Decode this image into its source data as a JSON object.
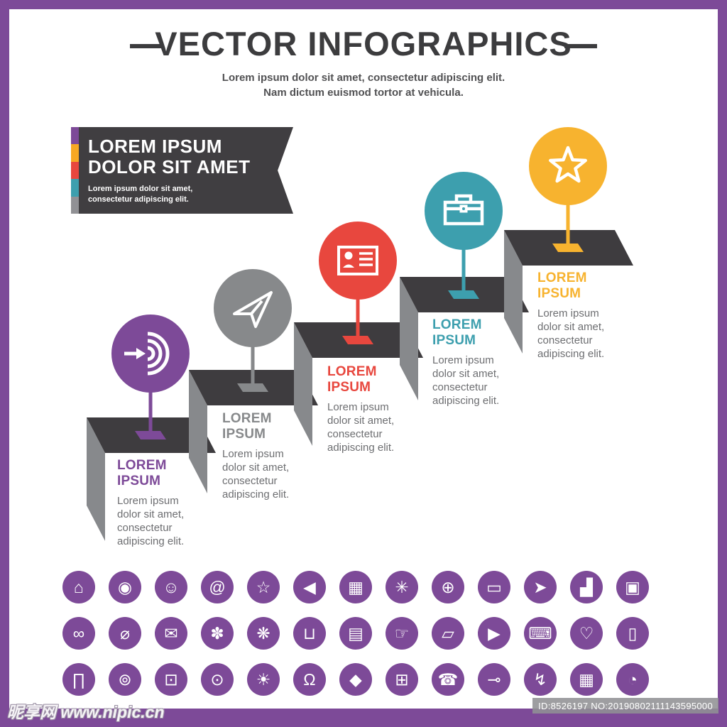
{
  "frame": {
    "border_color": "#7d4a98"
  },
  "header": {
    "title": "VECTOR INFOGRAPHICS",
    "subtitle_line1": "Lorem ipsum dolor sit amet, consectetur adipiscing elit.",
    "subtitle_line2": "Nam dictum euismod tortor at vehicula."
  },
  "banner": {
    "bg": "#403e41",
    "stripe_colors": [
      "#7d4a98",
      "#f7a823",
      "#e8473e",
      "#3d9fae",
      "#919195"
    ],
    "title_line1": "LOREM IPSUM",
    "title_line2": "DOLOR SIT AMET",
    "body_line1": "Lorem ipsum dolor sit amet,",
    "body_line2": "consectetur adipiscing elit."
  },
  "steps": [
    {
      "icon": "target-arrow-icon",
      "color": "#7d4a98",
      "heading": "LOREM IPSUM",
      "body": "Lorem ipsum dolor sit amet, consectetur adipiscing elit."
    },
    {
      "icon": "paper-plane-icon",
      "color": "#87898b",
      "heading": "LOREM IPSUM",
      "body": "Lorem ipsum dolor sit amet, consectetur adipiscing elit."
    },
    {
      "icon": "id-card-icon",
      "color": "#e8473e",
      "heading": "LOREM IPSUM",
      "body": "Lorem ipsum dolor sit amet, consectetur adipiscing elit."
    },
    {
      "icon": "briefcase-icon",
      "color": "#3d9fae",
      "heading": "LOREM IPSUM",
      "body": "Lorem ipsum dolor sit amet, consectetur adipiscing elit."
    },
    {
      "icon": "star-icon",
      "color": "#f7b32f",
      "heading": "LOREM IPSUM",
      "body": "Lorem ipsum dolor sit amet, consectetur adipiscing elit."
    }
  ],
  "icon_grid": {
    "color": "#7d4a98",
    "rows": [
      [
        {
          "name": "home-icon",
          "glyph": "⌂"
        },
        {
          "name": "location-pin-icon",
          "glyph": "◉"
        },
        {
          "name": "portrait-icon",
          "glyph": "☺"
        },
        {
          "name": "at-sign-icon",
          "glyph": "@"
        },
        {
          "name": "star-icon",
          "glyph": "☆"
        },
        {
          "name": "megaphone-icon",
          "glyph": "◀"
        },
        {
          "name": "gift-icon",
          "glyph": "▦"
        },
        {
          "name": "badge-icon",
          "glyph": "✳"
        },
        {
          "name": "globe-icon",
          "glyph": "⊕"
        },
        {
          "name": "laptop-icon",
          "glyph": "▭"
        },
        {
          "name": "send-icon",
          "glyph": "➤"
        },
        {
          "name": "bar-chart-icon",
          "glyph": "▟"
        },
        {
          "name": "wallet-icon",
          "glyph": "▣"
        }
      ],
      [
        {
          "name": "link-icon",
          "glyph": "∞"
        },
        {
          "name": "search-icon",
          "glyph": "⌀"
        },
        {
          "name": "chat-bubble-icon",
          "glyph": "✉"
        },
        {
          "name": "gear-icon",
          "glyph": "✽"
        },
        {
          "name": "network-globe-icon",
          "glyph": "❋"
        },
        {
          "name": "shopping-cart-icon",
          "glyph": "⊔"
        },
        {
          "name": "banknote-icon",
          "glyph": "▤"
        },
        {
          "name": "thumbs-up-icon",
          "glyph": "☞"
        },
        {
          "name": "truck-icon",
          "glyph": "▱"
        },
        {
          "name": "video-camera-icon",
          "glyph": "▶"
        },
        {
          "name": "printer-icon",
          "glyph": "⌨"
        },
        {
          "name": "heart-icon",
          "glyph": "♡"
        },
        {
          "name": "battery-icon",
          "glyph": "▯"
        }
      ],
      [
        {
          "name": "bank-icon",
          "glyph": "∏"
        },
        {
          "name": "piggy-bank-icon",
          "glyph": "⊚"
        },
        {
          "name": "monitor-icon",
          "glyph": "⊡"
        },
        {
          "name": "camera-icon",
          "glyph": "⊙"
        },
        {
          "name": "idea-icon",
          "glyph": "☀"
        },
        {
          "name": "headset-icon",
          "glyph": "Ω"
        },
        {
          "name": "shield-icon",
          "glyph": "◆"
        },
        {
          "name": "gamepad-icon",
          "glyph": "⊞"
        },
        {
          "name": "phone-icon",
          "glyph": "☎"
        },
        {
          "name": "plug-icon",
          "glyph": "⊸"
        },
        {
          "name": "lightning-icon",
          "glyph": "↯"
        },
        {
          "name": "calendar-icon",
          "glyph": "▦"
        },
        {
          "name": "clock-icon",
          "glyph": "◔"
        }
      ]
    ]
  },
  "footer": {
    "watermark": "昵享网 www.nipic.cn",
    "id_text": "ID:8526197 NO:20190802111143595000",
    "bar_color": "#7d4a98"
  }
}
